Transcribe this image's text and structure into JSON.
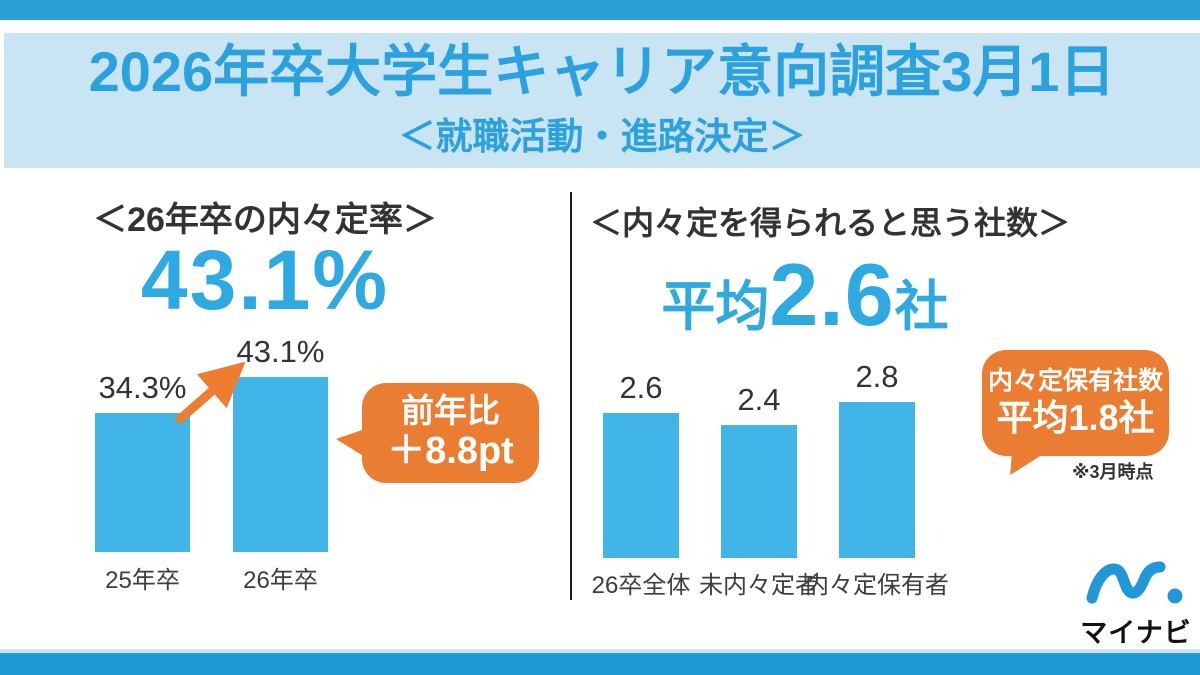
{
  "header": {
    "title": "2026年卒大学生キャリア意向調査3月1日",
    "subtitle": "＜就職活動・進路決定＞"
  },
  "left_panel": {
    "heading": "＜26年卒の内々定率＞",
    "highlight_value": "43.1%",
    "callout": {
      "line1": "前年比",
      "line2": "＋8.8pt"
    }
  },
  "right_panel": {
    "heading": "＜内々定を得られると思う社数＞",
    "highlight_prefix": "平均",
    "highlight_value": "2.6",
    "highlight_suffix": "社",
    "callout": {
      "line1": "内々定保有社数",
      "line2": "平均1.8社"
    },
    "footnote": "※3月時点"
  },
  "footer": {
    "logo_text": "マイナビ"
  },
  "colors": {
    "accent_blue": "#2BA2DD",
    "bar_blue": "#41B4E8",
    "banner_bg": "#C9E4F2",
    "strip_blue": "#29A0D8",
    "orange": "#EB7D33",
    "text_dark": "#333333"
  },
  "chart_data": [
    {
      "type": "bar",
      "title": "＜26年卒の内々定率＞",
      "categories": [
        "25年卒",
        "26年卒"
      ],
      "values": [
        34.3,
        43.1
      ],
      "labels": [
        "34.3%",
        "43.1%"
      ],
      "unit": "%",
      "ylim": [
        0,
        50
      ],
      "grid": false,
      "legend": false,
      "annotation": "前年比＋8.8pt"
    },
    {
      "type": "bar",
      "title": "＜内々定を得られると思う社数＞",
      "categories": [
        "26卒全体",
        "未内々定者",
        "内々定保有者"
      ],
      "values": [
        2.6,
        2.4,
        2.8
      ],
      "labels": [
        "2.6",
        "2.4",
        "2.8"
      ],
      "unit": "社",
      "ylim": [
        0,
        3.2
      ],
      "grid": false,
      "legend": false,
      "annotation": "内々定保有社数 平均1.8社（※3月時点）"
    }
  ]
}
